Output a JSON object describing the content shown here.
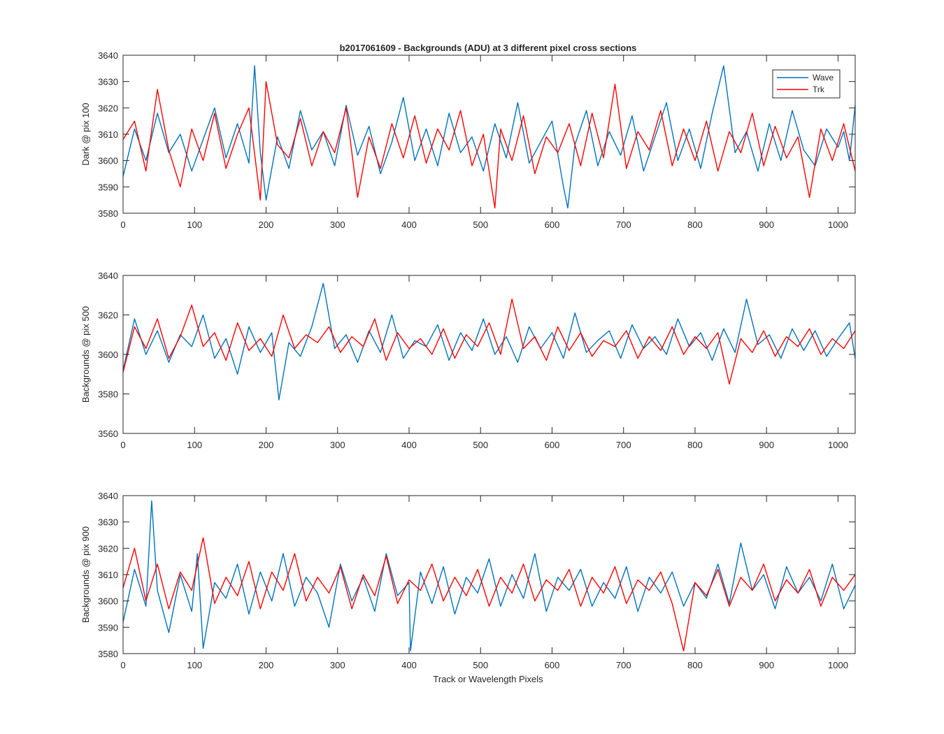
{
  "figure": {
    "title": "b2017061609 - Backgrounds (ADU) at 3 different pixel cross sections",
    "xlabel": "Track or Wavelength Pixels"
  },
  "legend": {
    "placement": "top-right of first panel",
    "entries": [
      {
        "name": "Wave",
        "color": "#0072BD"
      },
      {
        "name": "Trk",
        "color": "#FF0000"
      }
    ]
  },
  "chart_data": [
    {
      "type": "line",
      "ylabel": "Dark @ pix 100",
      "xlim": [
        0,
        1024
      ],
      "ylim": [
        3580,
        3640
      ],
      "xticks": [
        0,
        100,
        200,
        300,
        400,
        500,
        600,
        700,
        800,
        900,
        1000
      ],
      "yticks": [
        3580,
        3590,
        3600,
        3610,
        3620,
        3630,
        3640
      ],
      "series": [
        {
          "name": "Wave",
          "color": "#0072BD",
          "x": [
            0,
            16,
            32,
            48,
            64,
            80,
            96,
            112,
            128,
            144,
            160,
            176,
            184,
            192,
            200,
            216,
            232,
            248,
            264,
            280,
            296,
            312,
            328,
            344,
            360,
            376,
            392,
            408,
            424,
            440,
            456,
            472,
            488,
            504,
            520,
            536,
            552,
            568,
            584,
            600,
            616,
            622,
            632,
            648,
            664,
            680,
            696,
            712,
            728,
            744,
            760,
            776,
            792,
            808,
            824,
            840,
            856,
            872,
            888,
            904,
            920,
            936,
            952,
            968,
            984,
            1000,
            1008,
            1016,
            1024
          ],
          "values": [
            3594,
            3612,
            3600,
            3618,
            3603,
            3610,
            3596,
            3608,
            3620,
            3601,
            3614,
            3599,
            3636,
            3603,
            3585,
            3609,
            3597,
            3619,
            3604,
            3611,
            3598,
            3621,
            3602,
            3613,
            3595,
            3607,
            3624,
            3600,
            3612,
            3598,
            3618,
            3603,
            3609,
            3596,
            3614,
            3601,
            3622,
            3599,
            3607,
            3615,
            3590,
            3582,
            3606,
            3619,
            3598,
            3611,
            3602,
            3617,
            3596,
            3609,
            3622,
            3600,
            3612,
            3597,
            3618,
            3636,
            3603,
            3611,
            3596,
            3614,
            3600,
            3619,
            3604,
            3598,
            3612,
            3605,
            3611,
            3600,
            3621
          ]
        },
        {
          "name": "Trk",
          "color": "#FF0000",
          "x": [
            0,
            16,
            32,
            48,
            64,
            80,
            96,
            112,
            128,
            144,
            160,
            176,
            192,
            200,
            216,
            232,
            248,
            264,
            280,
            296,
            312,
            328,
            344,
            360,
            376,
            392,
            408,
            424,
            440,
            456,
            472,
            488,
            504,
            520,
            528,
            544,
            560,
            576,
            592,
            608,
            624,
            640,
            656,
            672,
            688,
            704,
            720,
            736,
            752,
            768,
            784,
            800,
            816,
            832,
            848,
            864,
            880,
            896,
            912,
            928,
            944,
            960,
            976,
            992,
            1008,
            1024
          ],
          "values": [
            3608,
            3615,
            3596,
            3627,
            3604,
            3590,
            3612,
            3600,
            3618,
            3597,
            3610,
            3620,
            3585,
            3630,
            3606,
            3601,
            3616,
            3598,
            3611,
            3603,
            3620,
            3586,
            3609,
            3597,
            3614,
            3601,
            3617,
            3599,
            3612,
            3604,
            3619,
            3598,
            3610,
            3582,
            3612,
            3600,
            3617,
            3595,
            3609,
            3603,
            3614,
            3598,
            3618,
            3601,
            3629,
            3597,
            3611,
            3604,
            3619,
            3598,
            3612,
            3600,
            3615,
            3596,
            3611,
            3603,
            3618,
            3598,
            3613,
            3601,
            3609,
            3586,
            3612,
            3600,
            3614,
            3596
          ]
        }
      ]
    },
    {
      "type": "line",
      "ylabel": "Backgrounds @ pix 500",
      "xlim": [
        0,
        1024
      ],
      "ylim": [
        3560,
        3640
      ],
      "xticks": [
        0,
        100,
        200,
        300,
        400,
        500,
        600,
        700,
        800,
        900,
        1000
      ],
      "yticks": [
        3560,
        3580,
        3600,
        3620,
        3640
      ],
      "series": [
        {
          "name": "Wave",
          "color": "#0072BD",
          "x": [
            0,
            16,
            32,
            48,
            64,
            80,
            96,
            112,
            128,
            144,
            160,
            176,
            192,
            208,
            218,
            232,
            248,
            264,
            280,
            296,
            312,
            328,
            344,
            360,
            376,
            392,
            408,
            424,
            440,
            456,
            472,
            488,
            504,
            520,
            536,
            552,
            568,
            584,
            600,
            616,
            632,
            648,
            664,
            680,
            696,
            712,
            728,
            744,
            760,
            776,
            792,
            808,
            824,
            840,
            856,
            872,
            888,
            904,
            920,
            936,
            952,
            968,
            984,
            1000,
            1016,
            1024
          ],
          "values": [
            3592,
            3618,
            3600,
            3612,
            3596,
            3610,
            3604,
            3620,
            3598,
            3608,
            3590,
            3614,
            3601,
            3611,
            3577,
            3606,
            3599,
            3614,
            3636,
            3603,
            3610,
            3596,
            3612,
            3601,
            3620,
            3598,
            3607,
            3604,
            3615,
            3597,
            3611,
            3602,
            3618,
            3600,
            3609,
            3596,
            3614,
            3603,
            3611,
            3598,
            3621,
            3601,
            3607,
            3612,
            3598,
            3615,
            3603,
            3609,
            3600,
            3618,
            3604,
            3611,
            3597,
            3613,
            3601,
            3628,
            3605,
            3610,
            3598,
            3613,
            3602,
            3612,
            3599,
            3608,
            3616,
            3598
          ]
        },
        {
          "name": "Trk",
          "color": "#FF0000",
          "x": [
            0,
            16,
            32,
            48,
            64,
            80,
            96,
            112,
            128,
            144,
            160,
            176,
            192,
            208,
            224,
            240,
            256,
            272,
            288,
            304,
            320,
            336,
            352,
            368,
            384,
            400,
            416,
            432,
            448,
            464,
            480,
            496,
            512,
            528,
            544,
            560,
            576,
            592,
            608,
            624,
            640,
            656,
            672,
            688,
            704,
            720,
            736,
            752,
            768,
            784,
            800,
            816,
            832,
            848,
            864,
            880,
            896,
            912,
            928,
            944,
            960,
            976,
            992,
            1008,
            1024
          ],
          "values": [
            3591,
            3614,
            3603,
            3618,
            3598,
            3609,
            3625,
            3604,
            3611,
            3597,
            3616,
            3602,
            3608,
            3599,
            3620,
            3603,
            3610,
            3606,
            3614,
            3601,
            3609,
            3604,
            3618,
            3597,
            3611,
            3603,
            3608,
            3600,
            3613,
            3598,
            3610,
            3604,
            3616,
            3600,
            3628,
            3603,
            3609,
            3597,
            3614,
            3602,
            3611,
            3599,
            3607,
            3604,
            3612,
            3598,
            3609,
            3602,
            3614,
            3600,
            3609,
            3603,
            3611,
            3585,
            3608,
            3601,
            3612,
            3599,
            3609,
            3604,
            3613,
            3600,
            3608,
            3603,
            3612
          ]
        }
      ]
    },
    {
      "type": "line",
      "ylabel": "Backgrounds @ pix 900",
      "xlim": [
        0,
        1024
      ],
      "ylim": [
        3580,
        3640
      ],
      "xticks": [
        0,
        100,
        200,
        300,
        400,
        500,
        600,
        700,
        800,
        900,
        1000
      ],
      "yticks": [
        3580,
        3590,
        3600,
        3610,
        3620,
        3630,
        3640
      ],
      "series": [
        {
          "name": "Wave",
          "color": "#0072BD",
          "x": [
            0,
            16,
            32,
            40,
            48,
            64,
            80,
            96,
            104,
            112,
            128,
            144,
            160,
            176,
            192,
            208,
            224,
            240,
            256,
            272,
            288,
            304,
            320,
            336,
            352,
            368,
            384,
            400,
            402,
            416,
            432,
            448,
            464,
            480,
            496,
            512,
            528,
            544,
            560,
            576,
            592,
            608,
            624,
            640,
            656,
            672,
            688,
            704,
            720,
            736,
            752,
            768,
            784,
            800,
            816,
            832,
            848,
            864,
            880,
            896,
            912,
            928,
            944,
            960,
            976,
            992,
            1008,
            1024
          ],
          "values": [
            3592,
            3612,
            3598,
            3638,
            3604,
            3588,
            3610,
            3596,
            3618,
            3582,
            3607,
            3601,
            3614,
            3595,
            3611,
            3600,
            3618,
            3598,
            3609,
            3603,
            3590,
            3614,
            3600,
            3609,
            3596,
            3618,
            3602,
            3607,
            3581,
            3611,
            3599,
            3613,
            3595,
            3609,
            3603,
            3616,
            3598,
            3610,
            3601,
            3618,
            3596,
            3609,
            3604,
            3612,
            3598,
            3607,
            3601,
            3613,
            3596,
            3609,
            3603,
            3611,
            3598,
            3607,
            3601,
            3614,
            3599,
            3622,
            3604,
            3610,
            3597,
            3613,
            3603,
            3609,
            3600,
            3614,
            3597,
            3606
          ]
        },
        {
          "name": "Trk",
          "color": "#FF0000",
          "x": [
            0,
            16,
            32,
            48,
            64,
            80,
            96,
            112,
            128,
            144,
            160,
            176,
            192,
            208,
            224,
            240,
            256,
            272,
            288,
            304,
            320,
            336,
            352,
            368,
            384,
            400,
            416,
            432,
            448,
            464,
            480,
            496,
            512,
            528,
            544,
            560,
            576,
            592,
            608,
            624,
            640,
            656,
            672,
            688,
            704,
            720,
            736,
            752,
            768,
            784,
            800,
            816,
            832,
            848,
            864,
            880,
            896,
            912,
            928,
            944,
            960,
            976,
            992,
            1008,
            1024
          ],
          "values": [
            3605,
            3620,
            3600,
            3614,
            3597,
            3611,
            3604,
            3624,
            3599,
            3609,
            3602,
            3615,
            3597,
            3611,
            3604,
            3618,
            3600,
            3609,
            3603,
            3613,
            3597,
            3610,
            3602,
            3617,
            3599,
            3608,
            3604,
            3614,
            3600,
            3609,
            3602,
            3612,
            3598,
            3609,
            3603,
            3614,
            3600,
            3608,
            3604,
            3612,
            3598,
            3609,
            3603,
            3613,
            3599,
            3608,
            3604,
            3611,
            3599,
            3581,
            3607,
            3602,
            3612,
            3598,
            3609,
            3604,
            3614,
            3600,
            3608,
            3603,
            3612,
            3598,
            3609,
            3604,
            3610
          ]
        }
      ]
    }
  ]
}
